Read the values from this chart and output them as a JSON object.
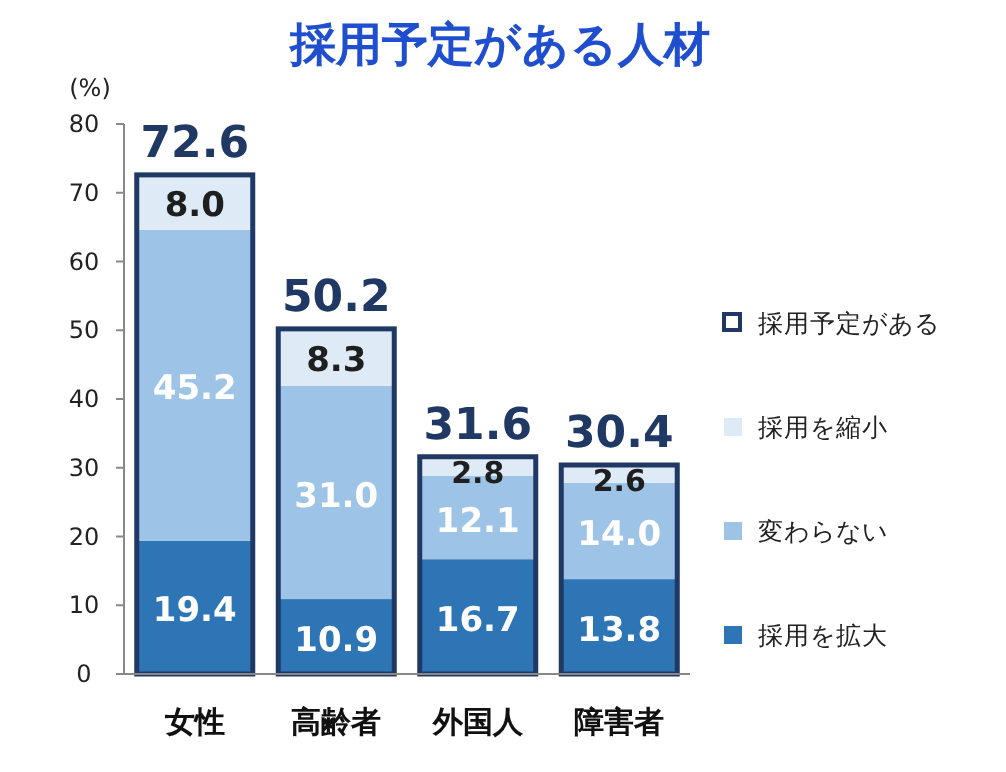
{
  "chart_data": {
    "type": "bar",
    "stacked": true,
    "title": "採用予定がある人材",
    "ylabel": "(%)",
    "categories": [
      "女性",
      "高齢者",
      "外国人",
      "障害者"
    ],
    "series": [
      {
        "name": "採用を拡大",
        "color": "#2e75b6",
        "values": [
          19.4,
          10.9,
          16.7,
          13.8
        ],
        "value_labels": [
          "19.4",
          "10.9",
          "16.7",
          "13.8"
        ]
      },
      {
        "name": "変わらない",
        "color": "#9dc3e6",
        "values": [
          45.2,
          31.0,
          12.1,
          14.0
        ],
        "value_labels": [
          "45.2",
          "31.0",
          "12.1",
          "14.0"
        ]
      },
      {
        "name": "採用を縮小",
        "color": "#deebf7",
        "values": [
          8.0,
          8.3,
          2.8,
          2.6
        ],
        "value_labels": [
          "8.0",
          "8.3",
          "2.8",
          "2.6"
        ]
      }
    ],
    "legend_title": "採用予定がある",
    "totals": [
      "72.6",
      "50.2",
      "31.6",
      "30.4"
    ],
    "ylim": [
      0,
      80
    ],
    "yticks": [
      0,
      10,
      20,
      30,
      40,
      50,
      60,
      70,
      80
    ],
    "legend": "right"
  }
}
